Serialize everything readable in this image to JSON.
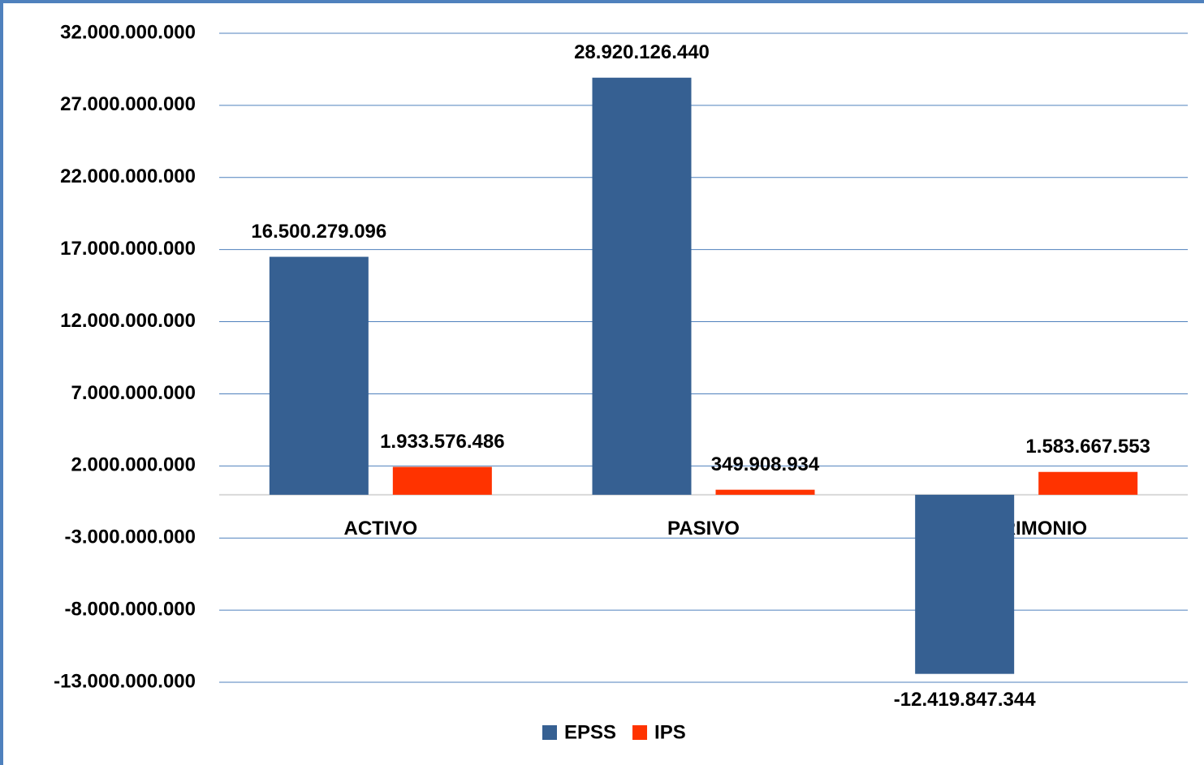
{
  "chart_data": {
    "type": "bar",
    "categories": [
      "ACTIVO",
      "PASIVO",
      "PATRIMONIO"
    ],
    "series": [
      {
        "name": "EPSS",
        "color": "#366092",
        "values": [
          16500279096,
          28920126440,
          -12419847344
        ],
        "value_labels": [
          "16.500.279.096",
          "28.920.126.440",
          "-12.419.847.344"
        ]
      },
      {
        "name": "IPS",
        "color": "#ff3300",
        "values": [
          1933576486,
          349908934,
          1583667553
        ],
        "value_labels": [
          "1.933.576.486",
          "349.908.934",
          "1.583.667.553"
        ]
      }
    ],
    "ylim": [
      -13000000000,
      32000000000
    ],
    "yticks": [
      {
        "value": -13000000000,
        "label": "-13.000.000.000"
      },
      {
        "value": -8000000000,
        "label": "-8.000.000.000"
      },
      {
        "value": -3000000000,
        "label": "-3.000.000.000"
      },
      {
        "value": 2000000000,
        "label": "2.000.000.000"
      },
      {
        "value": 7000000000,
        "label": "7.000.000.000"
      },
      {
        "value": 12000000000,
        "label": "12.000.000.000"
      },
      {
        "value": 17000000000,
        "label": "17.000.000.000"
      },
      {
        "value": 22000000000,
        "label": "22.000.000.000"
      },
      {
        "value": 27000000000,
        "label": "27.000.000.000"
      },
      {
        "value": 32000000000,
        "label": "32.000.000.000"
      }
    ],
    "grid": true,
    "legend": "bottom"
  }
}
